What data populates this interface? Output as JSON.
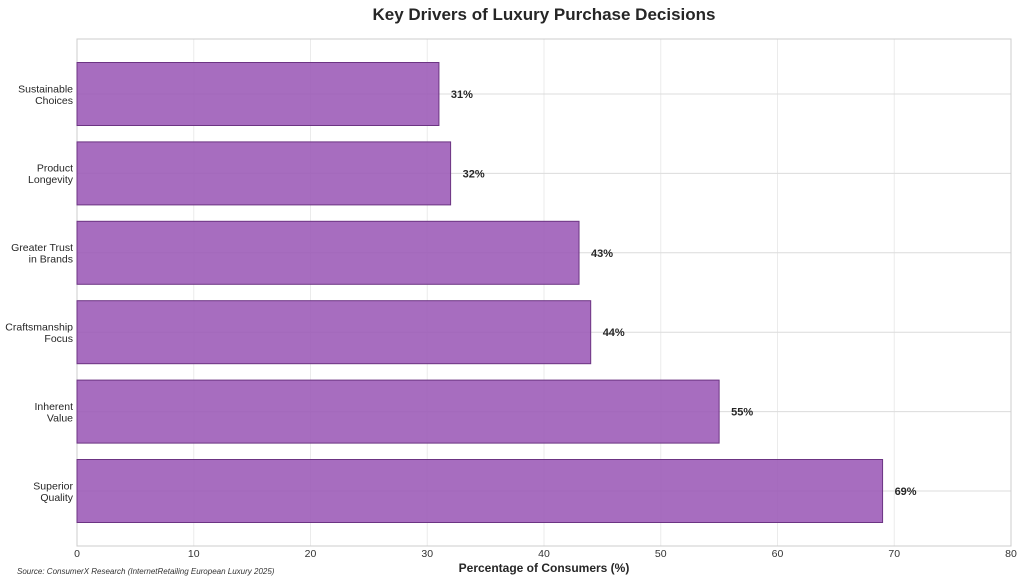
{
  "chart_data": {
    "type": "bar",
    "orientation": "horizontal",
    "title": "Key Drivers of Luxury Purchase Decisions",
    "xlabel": "Percentage of Consumers (%)",
    "ylabel": "",
    "categories": [
      [
        "Sustainable",
        "Choices"
      ],
      [
        "Product",
        "Longevity"
      ],
      [
        "Greater Trust",
        "in Brands"
      ],
      [
        "Craftsmanship",
        "Focus"
      ],
      [
        "Inherent",
        "Value"
      ],
      [
        "Superior",
        "Quality"
      ]
    ],
    "values": [
      31,
      32,
      43,
      44,
      55,
      69
    ],
    "value_labels": [
      "31%",
      "32%",
      "43%",
      "44%",
      "55%",
      "69%"
    ],
    "xlim": [
      0,
      80
    ],
    "xticks": [
      0,
      10,
      20,
      30,
      40,
      50,
      60,
      70,
      80
    ],
    "grid": true,
    "bar_color": "#9b59b6",
    "bar_edge_color": "#6c3483",
    "source": "Source: ConsumerX Research (InternetRetailing European Luxury 2025)"
  }
}
